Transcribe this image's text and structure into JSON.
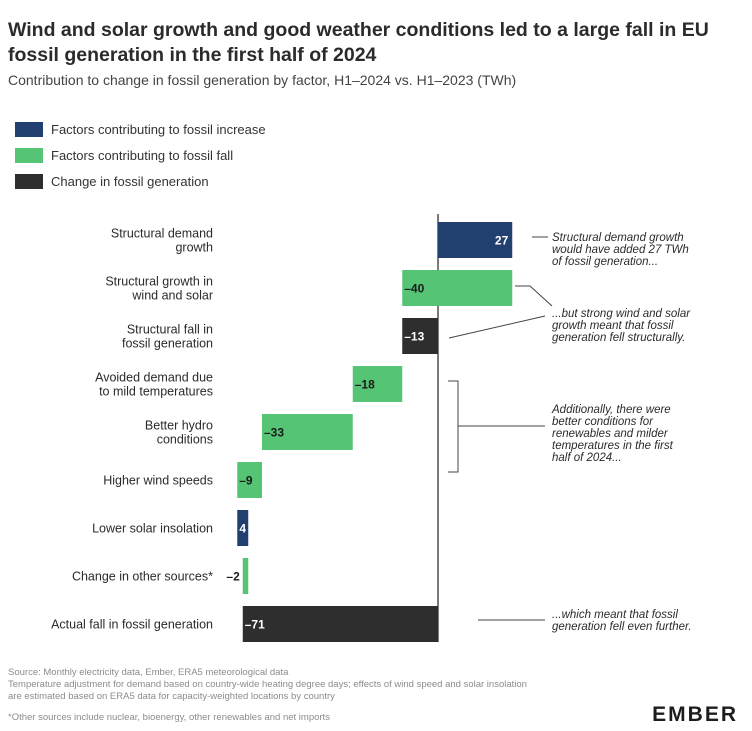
{
  "title": "Wind and solar growth and good weather conditions led to a large fall in EU fossil generation in the first half of 2024",
  "subtitle": "Contribution to change in fossil generation by factor, H1–2024 vs. H1–2023 (TWh)",
  "legend": [
    {
      "label": "Factors contributing to fossil increase",
      "color": "#22406f"
    },
    {
      "label": "Factors contributing to fossil fall",
      "color": "#55c474"
    },
    {
      "label": "Change in fossil generation",
      "color": "#2e2e2e"
    }
  ],
  "chart_data": {
    "type": "bar",
    "subtype": "waterfall",
    "orientation": "horizontal",
    "unit": "TWh",
    "categories": [
      "Structural demand growth",
      "Structural growth in wind and solar",
      "Structural fall in fossil generation",
      "Avoided demand due to mild temperatures",
      "Better hydro conditions",
      "Higher wind speeds",
      "Lower solar insolation",
      "Change in other sources*",
      "Actual fall in fossil generation"
    ],
    "category_lines": [
      [
        "Structural demand",
        "growth"
      ],
      [
        "Structural growth in",
        "wind and solar"
      ],
      [
        "Structural fall in",
        "fossil generation"
      ],
      [
        "Avoided demand due",
        "to mild temperatures"
      ],
      [
        "Better hydro",
        "conditions"
      ],
      [
        "Higher wind speeds"
      ],
      [
        "Lower solar insolation"
      ],
      [
        "Change in other sources*"
      ],
      [
        "Actual fall in fossil generation"
      ]
    ],
    "values": [
      27,
      -40,
      -13,
      -18,
      -33,
      -9,
      4,
      -2,
      -71
    ],
    "value_labels": [
      "27",
      "-40",
      "-13",
      "-18",
      "-33",
      "-9",
      "4",
      "-2",
      "-71"
    ],
    "kinds": [
      "increase",
      "fall",
      "total",
      "fall",
      "fall",
      "fall",
      "increase",
      "fall",
      "total"
    ],
    "colors": {
      "increase": "#22406f",
      "fall": "#55c474",
      "total": "#2e2e2e"
    },
    "annotations": [
      {
        "lines": [
          "Structural demand growth",
          "would have added 27 TWh",
          "of fossil generation..."
        ]
      },
      {
        "lines": [
          "...but strong wind and solar",
          "growth meant that fossil",
          "generation fell structurally."
        ]
      },
      {
        "lines": [
          "Additionally, there were",
          "better conditions for",
          "renewables and milder",
          "temperatures in the first",
          "half of 2024..."
        ]
      },
      {
        "lines": [
          "...which meant that fossil",
          "generation fell even further."
        ]
      }
    ]
  },
  "footer": {
    "source_lines": [
      "Source: Monthly electricity data, Ember, ERA5 meteorological data",
      "Temperature adjustment for demand based on country-wide heating degree days; effects of wind speed and solar insolation",
      "are estimated based on ERA5 data for capacity-weighted locations by country"
    ],
    "note": "*Other sources include nuclear, bioenergy, other renewables and net imports"
  },
  "logo": "EMBER"
}
